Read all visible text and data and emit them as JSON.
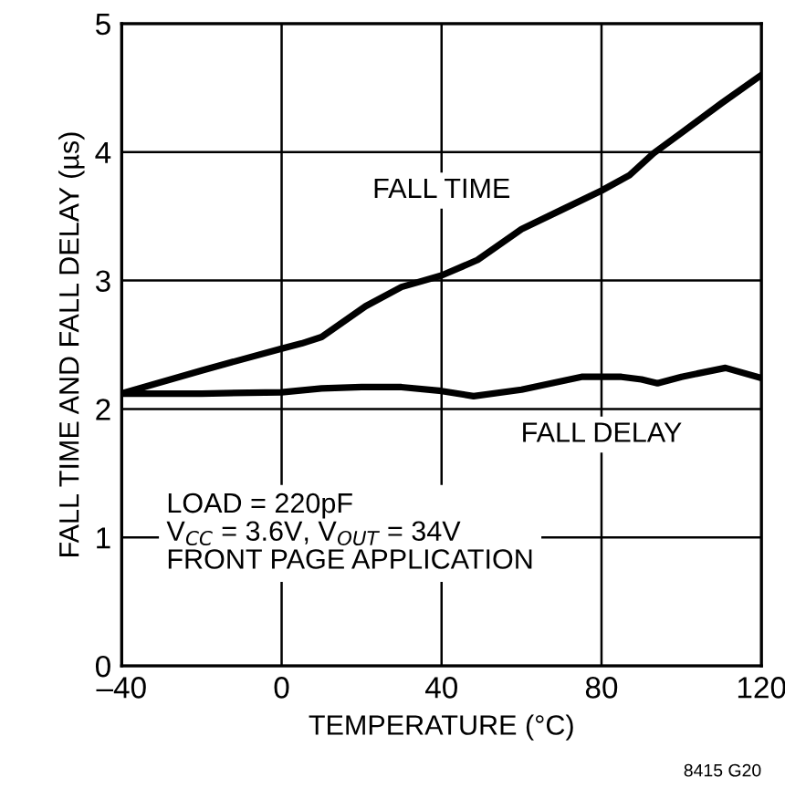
{
  "chart_data": {
    "type": "line",
    "xlabel": "TEMPERATURE (°C)",
    "ylabel": "FALL TIME AND FALL DELAY (µs)",
    "xlim": [
      -40,
      120
    ],
    "ylim": [
      0,
      5
    ],
    "xticks": [
      {
        "value": -40,
        "label": "–40"
      },
      0,
      40,
      80,
      120
    ],
    "yticks": [
      0,
      1,
      2,
      3,
      4,
      5
    ],
    "grid": true,
    "series": [
      {
        "name": "FALL TIME",
        "color": "#000000",
        "x": [
          -40,
          -20,
          0,
          5,
          10,
          21,
          30,
          40,
          49,
          60,
          70,
          80,
          87,
          93,
          100,
          110,
          120
        ],
        "values": [
          2.12,
          2.3,
          2.47,
          2.51,
          2.56,
          2.8,
          2.95,
          3.04,
          3.16,
          3.4,
          3.55,
          3.7,
          3.82,
          3.99,
          4.15,
          4.38,
          4.6
        ]
      },
      {
        "name": "FALL DELAY",
        "color": "#000000",
        "x": [
          -40,
          -20,
          0,
          10,
          20,
          30,
          40,
          48,
          60,
          75,
          85,
          90,
          94,
          100,
          111,
          120
        ],
        "values": [
          2.12,
          2.12,
          2.13,
          2.16,
          2.17,
          2.17,
          2.14,
          2.1,
          2.15,
          2.25,
          2.25,
          2.23,
          2.2,
          2.25,
          2.32,
          2.24
        ]
      }
    ],
    "annotations": [
      "LOAD = 220pF\nV$_{CC}$ = 3.6V, V$_{OUT}$ = 34V\nFRONT PAGE APPLICATION",
      "8415 G20"
    ]
  }
}
